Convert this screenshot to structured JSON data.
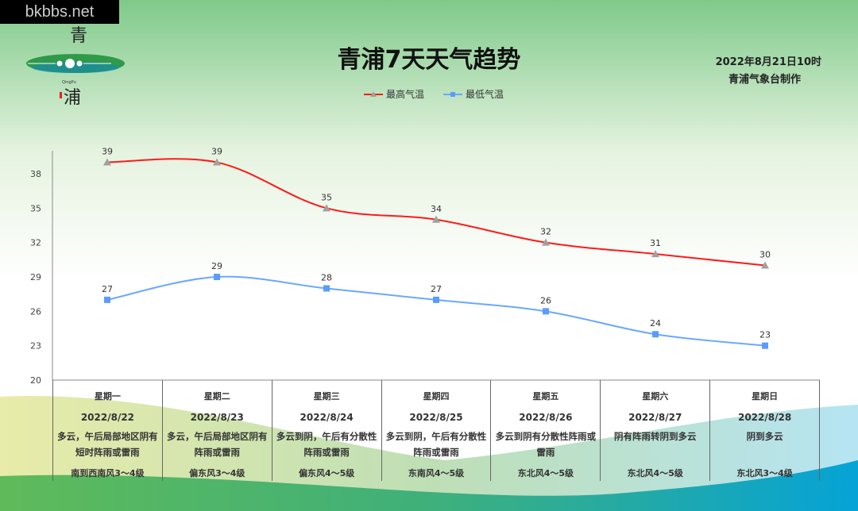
{
  "watermark": "bkbbs.net",
  "logo": {
    "text_top": "青",
    "text_bottom": "浦",
    "latin": "QingPu"
  },
  "title": "青浦7天天气趋势",
  "issued": "2022年8月21日10时",
  "issuer": "青浦气象台制作",
  "colors": {
    "high": "#ff1a1a",
    "low": "#6aa8ff",
    "high_marker": "#a0a0a0",
    "low_marker": "#5b9bff"
  },
  "chart_data": {
    "type": "line",
    "categories": [
      "星期一",
      "星期二",
      "星期三",
      "星期四",
      "星期五",
      "星期六",
      "星期日"
    ],
    "series": [
      {
        "name": "最高气温",
        "values": [
          39,
          39,
          35,
          34,
          32,
          31,
          30
        ]
      },
      {
        "name": "最低气温",
        "values": [
          27,
          29,
          28,
          27,
          26,
          24,
          23
        ]
      }
    ],
    "ylim": [
      20,
      40
    ],
    "yticks": [
      20,
      23,
      26,
      29,
      32,
      35,
      38
    ],
    "legend": "top-center",
    "grid": false
  },
  "days": [
    {
      "day": "星期一",
      "date": "2022/8/22",
      "weather": "多云，午后局部地区阴有短时阵雨或雷雨",
      "wind": "南到西南风3～4级"
    },
    {
      "day": "星期二",
      "date": "2022/8/23",
      "weather": "多云，午后局部地区阴有阵雨或雷雨",
      "wind": "偏东风3～4级"
    },
    {
      "day": "星期三",
      "date": "2022/8/24",
      "weather": "多云到阴，午后有分散性阵雨或雷雨",
      "wind": "偏东风4～5级"
    },
    {
      "day": "星期四",
      "date": "2022/8/25",
      "weather": "多云到阴，午后有分散性阵雨或雷雨",
      "wind": "东南风4～5级"
    },
    {
      "day": "星期五",
      "date": "2022/8/26",
      "weather": "多云到阴有分散性阵雨或雷雨",
      "wind": "东北风4～5级"
    },
    {
      "day": "星期六",
      "date": "2022/8/27",
      "weather": "阴有阵雨转阴到多云",
      "wind": "东北风4～5级"
    },
    {
      "day": "星期日",
      "date": "2022/8/28",
      "weather": "阴到多云",
      "wind": "东北风3～4级"
    }
  ]
}
